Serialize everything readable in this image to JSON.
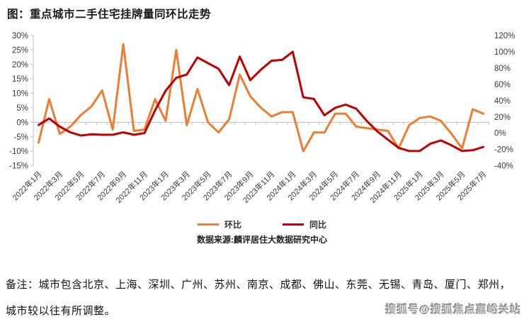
{
  "title": "图：重点城市二手住宅挂牌量同环比走势",
  "legend": {
    "items": [
      {
        "label": "环比",
        "color": "#ED7D31"
      },
      {
        "label": "同比",
        "color": "#C00000"
      }
    ]
  },
  "source": "数据来源:麟评居住大数据研究中心",
  "note_line1": "备注：城市包含北京、上海、深圳、广州、苏州、南京、成都、佛山、东莞、无锡、青岛、厦门、郑州，",
  "note_line2": "城市较以往有所调整。",
  "watermark": "搜狐号@搜狐焦点嘉峪关站",
  "colors": {
    "mom_line": "#ED7D31",
    "yoy_line": "#C00000",
    "axis_line": "#BFBFBF",
    "axis_text": "#3a3a3a"
  },
  "chart_data": {
    "type": "line",
    "x": [
      "2022年1月",
      "2022年2月",
      "2022年3月",
      "2022年4月",
      "2022年5月",
      "2022年6月",
      "2022年7月",
      "2022年8月",
      "2022年9月",
      "2022年10月",
      "2022年11月",
      "2022年12月",
      "2023年1月",
      "2023年2月",
      "2023年3月",
      "2023年4月",
      "2023年5月",
      "2023年6月",
      "2023年7月",
      "2023年8月",
      "2023年9月",
      "2023年10月",
      "2023年11月",
      "2023年12月",
      "2024年1月",
      "2024年2月",
      "2024年3月",
      "2024年4月",
      "2024年5月",
      "2024年6月",
      "2024年7月",
      "2024年8月",
      "2024年9月",
      "2024年10月",
      "2024年11月",
      "2024年12月",
      "2025年1月",
      "2025年2月",
      "2025年3月",
      "2025年4月",
      "2025年5月",
      "2025年6月",
      "2025年7月"
    ],
    "x_tick_every": 2,
    "series": [
      {
        "name": "环比",
        "axis": "left",
        "color": "#ED7D31",
        "values": [
          -7,
          8,
          -4,
          -1.5,
          2.5,
          5.5,
          11,
          -2.5,
          27,
          -3,
          -2.5,
          8,
          0.5,
          25,
          -1,
          11.5,
          0,
          -3.5,
          1,
          16.5,
          9,
          5,
          2,
          3.5,
          3.5,
          -10,
          -3.5,
          -3.5,
          3,
          3,
          -1.5,
          -2,
          -2.5,
          -3,
          -9,
          -1,
          1.5,
          2,
          0.5,
          -4,
          -9,
          4.5,
          3
        ]
      },
      {
        "name": "同比",
        "axis": "right",
        "color": "#C00000",
        "values": [
          10,
          18,
          8,
          1,
          -3,
          -1.5,
          -2,
          -2,
          1,
          -2,
          0,
          28,
          52,
          68,
          72,
          93,
          86,
          79,
          59,
          94,
          65,
          78,
          89,
          90,
          100,
          44,
          42,
          22,
          31,
          35,
          30,
          15,
          2,
          -8,
          -18,
          -22,
          -22,
          -13,
          -9,
          -15,
          -22,
          -21,
          -17
        ]
      }
    ],
    "left_axis": {
      "labels": [
        "30%",
        "25%",
        "20%",
        "15%",
        "10%",
        "5%",
        "0%",
        "-5%",
        "-10%",
        "-15%"
      ],
      "values": [
        30,
        25,
        20,
        15,
        10,
        5,
        0,
        -5,
        -10,
        -15
      ],
      "max": 30,
      "min": -15
    },
    "right_axis": {
      "labels": [
        "120%",
        "100%",
        "80%",
        "60%",
        "40%",
        "20%",
        "0%",
        "-20%",
        "-40%"
      ],
      "values": [
        120,
        100,
        80,
        60,
        40,
        20,
        0,
        -20,
        -40
      ],
      "max": 120,
      "min": -40
    },
    "grid": false,
    "legend_position": "bottom"
  }
}
